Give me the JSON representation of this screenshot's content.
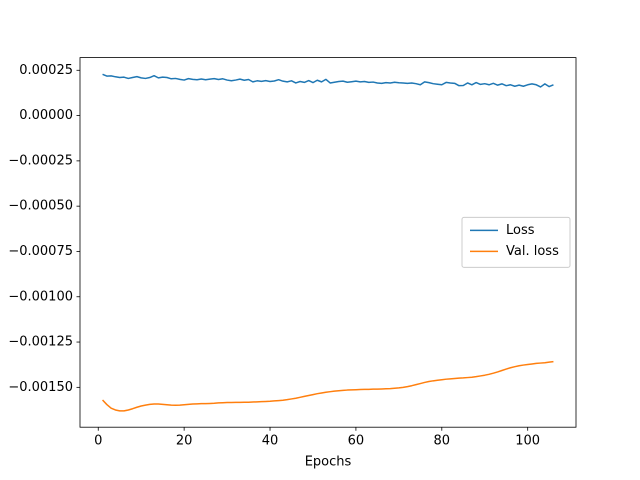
{
  "chart_data": {
    "type": "line",
    "x_label": "Epochs",
    "x": [
      1,
      2,
      3,
      4,
      5,
      6,
      7,
      8,
      9,
      10,
      11,
      12,
      13,
      14,
      15,
      16,
      17,
      18,
      19,
      20,
      21,
      22,
      23,
      24,
      25,
      26,
      27,
      28,
      29,
      30,
      31,
      32,
      33,
      34,
      35,
      36,
      37,
      38,
      39,
      40,
      41,
      42,
      43,
      44,
      45,
      46,
      47,
      48,
      49,
      50,
      51,
      52,
      53,
      54,
      55,
      56,
      57,
      58,
      59,
      60,
      61,
      62,
      63,
      64,
      65,
      66,
      67,
      68,
      69,
      70,
      71,
      72,
      73,
      74,
      75,
      76,
      77,
      78,
      79,
      80,
      81,
      82,
      83,
      84,
      85,
      86,
      87,
      88,
      89,
      90,
      91,
      92,
      93,
      94,
      95,
      96,
      97,
      98,
      99,
      100,
      101,
      102,
      103,
      104,
      105,
      106
    ],
    "series": [
      {
        "name": "Loss",
        "color": "#1f77b4",
        "values": [
          0.000228,
          0.000218,
          0.000219,
          0.000214,
          0.00021,
          0.000212,
          0.000205,
          0.00021,
          0.000215,
          0.000208,
          0.000205,
          0.00021,
          0.00022,
          0.000208,
          0.000212,
          0.00021,
          0.000203,
          0.000205,
          0.0002,
          0.000196,
          0.000204,
          0.0002,
          0.000198,
          0.000202,
          0.000198,
          0.000201,
          0.000204,
          0.000199,
          0.000203,
          0.000196,
          0.000192,
          0.000196,
          0.000201,
          0.000195,
          0.000199,
          0.000186,
          0.000192,
          0.000189,
          0.000193,
          0.000188,
          0.000191,
          0.000198,
          0.00019,
          0.000186,
          0.000192,
          0.00018,
          0.000188,
          0.000183,
          0.000193,
          0.000182,
          0.000195,
          0.000186,
          0.0002,
          0.00018,
          0.000184,
          0.000188,
          0.00019,
          0.000184,
          0.000187,
          0.00019,
          0.000186,
          0.000188,
          0.000183,
          0.000185,
          0.00018,
          0.000178,
          0.000182,
          0.00018,
          0.000184,
          0.000181,
          0.00018,
          0.000178,
          0.00018,
          0.000176,
          0.00017,
          0.000186,
          0.000182,
          0.000176,
          0.000173,
          0.00017,
          0.000183,
          0.00018,
          0.000178,
          0.000165,
          0.000166,
          0.00018,
          0.00017,
          0.000182,
          0.000172,
          0.000176,
          0.00017,
          0.000178,
          0.000168,
          0.000175,
          0.000165,
          0.00017,
          0.000162,
          0.000168,
          0.000162,
          0.00017,
          0.000175,
          0.00017,
          0.000158,
          0.000175,
          0.00016,
          0.00017
        ]
      },
      {
        "name": "Val. loss",
        "color": "#ff7f0e",
        "values": [
          -0.00157,
          -0.001595,
          -0.001615,
          -0.001625,
          -0.00163,
          -0.00163,
          -0.001625,
          -0.001618,
          -0.00161,
          -0.001603,
          -0.001598,
          -0.001594,
          -0.001592,
          -0.001592,
          -0.001594,
          -0.001596,
          -0.001598,
          -0.001599,
          -0.001598,
          -0.001596,
          -0.001594,
          -0.001592,
          -0.001591,
          -0.00159,
          -0.00159,
          -0.001589,
          -0.001588,
          -0.001586,
          -0.001585,
          -0.001584,
          -0.001584,
          -0.001583,
          -0.001583,
          -0.001582,
          -0.001582,
          -0.001581,
          -0.00158,
          -0.001579,
          -0.001578,
          -0.001577,
          -0.001575,
          -0.001573,
          -0.001571,
          -0.001568,
          -0.001564,
          -0.00156,
          -0.001555,
          -0.00155,
          -0.001545,
          -0.00154,
          -0.001535,
          -0.001531,
          -0.001527,
          -0.001524,
          -0.001521,
          -0.001519,
          -0.001517,
          -0.001515,
          -0.001514,
          -0.001513,
          -0.001512,
          -0.001511,
          -0.001511,
          -0.00151,
          -0.00151,
          -0.001509,
          -0.001508,
          -0.001507,
          -0.001505,
          -0.001503,
          -0.0015,
          -0.001496,
          -0.001491,
          -0.001485,
          -0.001479,
          -0.001473,
          -0.001468,
          -0.001464,
          -0.001461,
          -0.001458,
          -0.001455,
          -0.001453,
          -0.001451,
          -0.001449,
          -0.001448,
          -0.001446,
          -0.001444,
          -0.001441,
          -0.001437,
          -0.001433,
          -0.001428,
          -0.001422,
          -0.001415,
          -0.001407,
          -0.001399,
          -0.001392,
          -0.001386,
          -0.001381,
          -0.001377,
          -0.001374,
          -0.001371,
          -0.001368,
          -0.001366,
          -0.001364,
          -0.001361,
          -0.001358
        ]
      }
    ],
    "xlim": [
      -4.25,
      111.25
    ],
    "ylim": [
      -0.00172,
      0.00032
    ],
    "xticks": [
      0,
      20,
      40,
      60,
      80,
      100
    ],
    "yticks": [
      {
        "value": 0.00025,
        "label": "0.00025"
      },
      {
        "value": 0,
        "label": "0.00000"
      },
      {
        "value": -0.00025,
        "label": "−0.00025"
      },
      {
        "value": -0.0005,
        "label": "−0.00050"
      },
      {
        "value": -0.00075,
        "label": "−0.00075"
      },
      {
        "value": -0.001,
        "label": "−0.00100"
      },
      {
        "value": -0.00125,
        "label": "−0.00125"
      },
      {
        "value": -0.0015,
        "label": "−0.00150"
      }
    ],
    "grid": false,
    "legend": "center right"
  }
}
